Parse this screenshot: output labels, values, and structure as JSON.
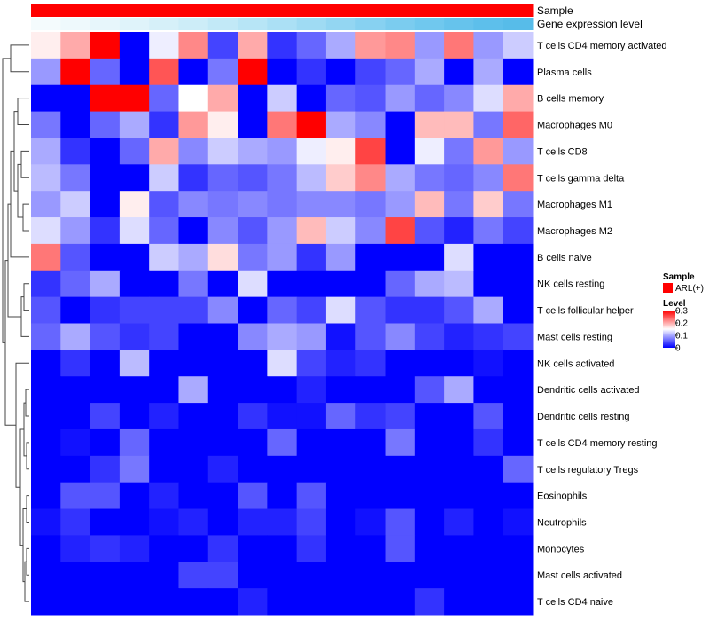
{
  "chart_data": {
    "type": "heatmap",
    "annotation_labels": {
      "sample": "Sample",
      "gene": "Gene expression level"
    },
    "sample_annotation": {
      "value": "ARL(+)",
      "color": "#ff0000"
    },
    "gene_expression_colors": [
      "#f4fbfd",
      "#eef9fc",
      "#e7f6fb",
      "#dff3fa",
      "#d6f0f9",
      "#cdedf8",
      "#c2e9f7",
      "#b7e5f6",
      "#abe0f5",
      "#9fdbf3",
      "#93d6f2",
      "#87d1f1",
      "#7bccef",
      "#70c8ee",
      "#66c3ec",
      "#5dbfeb",
      "#57bce9"
    ],
    "rows": [
      "T cells CD4 memory activated",
      "Plasma cells",
      "B cells memory",
      "Macrophages M0",
      "T cells CD8",
      "T cells gamma delta",
      "Macrophages M1",
      "Macrophages M2",
      "B cells naive",
      "NK cells resting",
      "T cells follicular helper",
      "Mast cells resting",
      "NK cells activated",
      "Dendritic cells activated",
      "Dendritic cells resting",
      "T cells CD4 memory resting",
      "T cells regulatory  Tregs",
      "Eosinophils",
      "Neutrophils",
      "Monocytes",
      "Mast cells activated",
      "T cells CD4 naive"
    ],
    "values": [
      [
        0.16,
        0.2,
        0.3,
        0.0,
        0.14,
        0.22,
        0.04,
        0.2,
        0.03,
        0.06,
        0.1,
        0.21,
        0.22,
        0.09,
        0.23,
        0.09,
        0.12
      ],
      [
        0.09,
        0.3,
        0.06,
        0.0,
        0.25,
        0.0,
        0.07,
        0.3,
        0.0,
        0.03,
        0.0,
        0.04,
        0.06,
        0.1,
        0.0,
        0.1,
        0.0
      ],
      [
        0.0,
        0.0,
        0.3,
        0.3,
        0.06,
        0.15,
        0.2,
        0.0,
        0.12,
        0.0,
        0.06,
        0.05,
        0.09,
        0.06,
        0.08,
        0.13,
        0.2
      ],
      [
        0.07,
        0.0,
        0.06,
        0.1,
        0.03,
        0.21,
        0.16,
        0.0,
        0.23,
        0.3,
        0.1,
        0.08,
        0.0,
        0.19,
        0.19,
        0.07,
        0.24
      ],
      [
        0.1,
        0.03,
        0.0,
        0.06,
        0.2,
        0.08,
        0.12,
        0.1,
        0.09,
        0.14,
        0.16,
        0.26,
        0.0,
        0.14,
        0.07,
        0.21,
        0.09
      ],
      [
        0.11,
        0.07,
        0.0,
        0.0,
        0.12,
        0.03,
        0.06,
        0.05,
        0.07,
        0.11,
        0.18,
        0.22,
        0.1,
        0.07,
        0.06,
        0.08,
        0.23
      ],
      [
        0.09,
        0.12,
        0.0,
        0.16,
        0.05,
        0.08,
        0.07,
        0.08,
        0.07,
        0.08,
        0.08,
        0.07,
        0.09,
        0.19,
        0.07,
        0.18,
        0.07
      ],
      [
        0.13,
        0.09,
        0.03,
        0.13,
        0.06,
        0.0,
        0.08,
        0.05,
        0.09,
        0.19,
        0.12,
        0.08,
        0.26,
        0.05,
        0.02,
        0.07,
        0.04
      ],
      [
        0.23,
        0.05,
        0.0,
        0.0,
        0.12,
        0.1,
        0.17,
        0.07,
        0.09,
        0.03,
        0.09,
        0.0,
        0.0,
        0.0,
        0.13,
        0.0,
        0.0
      ],
      [
        0.03,
        0.06,
        0.1,
        0.0,
        0.0,
        0.07,
        0.0,
        0.13,
        0.0,
        0.0,
        0.0,
        0.0,
        0.06,
        0.1,
        0.11,
        0.0,
        0.0
      ],
      [
        0.05,
        0.0,
        0.03,
        0.04,
        0.04,
        0.04,
        0.08,
        0.0,
        0.06,
        0.04,
        0.13,
        0.05,
        0.03,
        0.03,
        0.05,
        0.1,
        0.0
      ],
      [
        0.06,
        0.1,
        0.05,
        0.03,
        0.04,
        0.0,
        0.0,
        0.08,
        0.1,
        0.09,
        0.01,
        0.05,
        0.08,
        0.04,
        0.02,
        0.03,
        0.04
      ],
      [
        0.0,
        0.03,
        0.0,
        0.11,
        0.0,
        0.0,
        0.0,
        0.0,
        0.13,
        0.04,
        0.02,
        0.03,
        0.0,
        0.0,
        0.0,
        0.01,
        0.0
      ],
      [
        0.0,
        0.0,
        0.0,
        0.0,
        0.0,
        0.1,
        0.0,
        0.0,
        0.0,
        0.02,
        0.0,
        0.0,
        0.0,
        0.05,
        0.1,
        0.0,
        0.0
      ],
      [
        0.0,
        0.0,
        0.04,
        0.0,
        0.02,
        0.0,
        0.0,
        0.03,
        0.01,
        0.01,
        0.06,
        0.03,
        0.04,
        0.0,
        0.0,
        0.05,
        0.0
      ],
      [
        0.0,
        0.01,
        0.0,
        0.06,
        0.0,
        0.0,
        0.0,
        0.0,
        0.06,
        0.0,
        0.0,
        0.0,
        0.07,
        0.0,
        0.0,
        0.03,
        0.0
      ],
      [
        0.0,
        0.0,
        0.03,
        0.07,
        0.0,
        0.0,
        0.02,
        0.0,
        0.0,
        0.0,
        0.0,
        0.0,
        0.0,
        0.0,
        0.0,
        0.0,
        0.06
      ],
      [
        0.0,
        0.05,
        0.05,
        0.0,
        0.02,
        0.0,
        0.0,
        0.05,
        0.0,
        0.05,
        0.0,
        0.0,
        0.0,
        0.0,
        0.0,
        0.0,
        0.0
      ],
      [
        0.01,
        0.03,
        0.0,
        0.0,
        0.01,
        0.02,
        0.0,
        0.02,
        0.02,
        0.04,
        0.0,
        0.01,
        0.05,
        0.0,
        0.02,
        0.0,
        0.01
      ],
      [
        0.0,
        0.02,
        0.03,
        0.02,
        0.0,
        0.0,
        0.03,
        0.0,
        0.0,
        0.03,
        0.0,
        0.0,
        0.05,
        0.0,
        0.0,
        0.0,
        0.0
      ],
      [
        0.0,
        0.0,
        0.0,
        0.0,
        0.0,
        0.04,
        0.04,
        0.0,
        0.0,
        0.0,
        0.0,
        0.0,
        0.0,
        0.0,
        0.0,
        0.0,
        0.0
      ],
      [
        0.0,
        0.0,
        0.0,
        0.0,
        0.0,
        0.0,
        0.0,
        0.02,
        0.0,
        0.0,
        0.0,
        0.0,
        0.0,
        0.03,
        0.0,
        0.0,
        0.0
      ]
    ],
    "color_scale": {
      "min": 0,
      "mid": 0.15,
      "max": 0.3,
      "low": "#0000ff",
      "midColor": "#ffffff",
      "high": "#ff0000"
    },
    "legend": {
      "sample_title": "Sample",
      "level_title": "Level",
      "ticks": [
        {
          "value": 0.3,
          "label": "0.3"
        },
        {
          "value": 0.2,
          "label": "0.2"
        },
        {
          "value": 0.1,
          "label": "0.1"
        },
        {
          "value": 0,
          "label": "0"
        }
      ]
    }
  }
}
